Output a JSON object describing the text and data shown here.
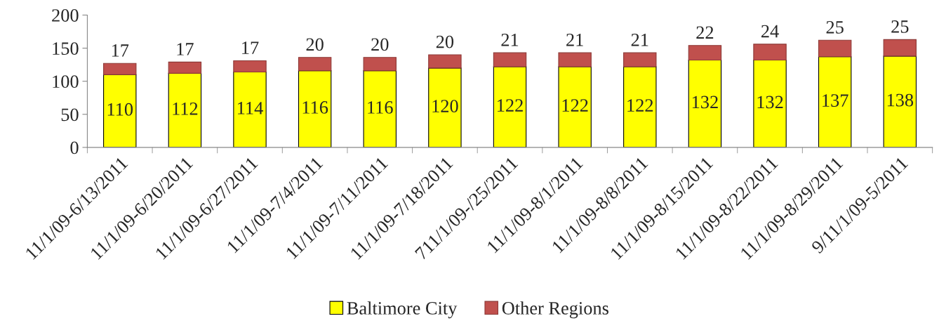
{
  "chart_data": {
    "type": "bar",
    "stacked": true,
    "categories": [
      "11/1/09-6/13/2011",
      "11/1/09-6/20/2011",
      "11/1/09-6/27/2011",
      "11/1/09-7/4/2011",
      "11/1/09-7/11/2011",
      "11/1/09-7/18/2011",
      "711/1/09-/25/2011",
      "11/1/09-8/1/2011",
      "11/1/09-8/8/2011",
      "11/1/09-8/15/2011",
      "11/1/09-8/22/2011",
      "11/1/09-8/29/2011",
      "9/11/1/09-5/2011"
    ],
    "series": [
      {
        "name": "Baltimore City",
        "color": "#ffff00",
        "values": [
          110,
          112,
          114,
          116,
          116,
          120,
          122,
          122,
          122,
          132,
          132,
          137,
          138
        ]
      },
      {
        "name": "Other Regions",
        "color": "#c0504d",
        "values": [
          17,
          17,
          17,
          20,
          20,
          20,
          21,
          21,
          21,
          22,
          24,
          25,
          25
        ]
      }
    ],
    "ylim": [
      0,
      200
    ],
    "yticks": [
      0,
      50,
      100,
      150,
      200
    ],
    "data_labels": true,
    "legend": "bottom",
    "grid": false
  }
}
